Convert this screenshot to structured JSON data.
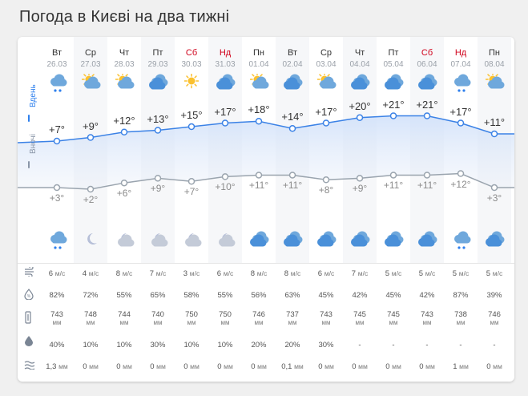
{
  "page": {
    "title": "Погода в Києві на два тижні"
  },
  "labels": {
    "day": "Вдень",
    "night": "Вночі"
  },
  "colors": {
    "day_line": "#3b82e6",
    "night_line": "#9aa4ae",
    "weekend": "#d0021b",
    "accent": "#2f80ed"
  },
  "days": [
    {
      "dow": "Вт",
      "date": "26.03",
      "weekend": false,
      "day_icon": "cloud-rain-icon",
      "night_icon": "cloud-rain-icon",
      "t_day": "+7°",
      "t_night": "+3°",
      "day_temp": 7,
      "night_temp": 3,
      "wind": "6",
      "humidity": "82%",
      "pressure": "743",
      "precip_prob": "40%",
      "precip": "1,3"
    },
    {
      "dow": "Ср",
      "date": "27.03",
      "weekend": false,
      "day_icon": "sun-cloud-icon",
      "night_icon": "moon-icon",
      "t_day": "+9°",
      "t_night": "+2°",
      "day_temp": 9,
      "night_temp": 2,
      "wind": "4",
      "humidity": "72%",
      "pressure": "748",
      "precip_prob": "10%",
      "precip": "0"
    },
    {
      "dow": "Чт",
      "date": "28.03",
      "weekend": false,
      "day_icon": "sun-cloud-icon",
      "night_icon": "moon-cloud-icon",
      "t_day": "+12°",
      "t_night": "+6°",
      "day_temp": 12,
      "night_temp": 6,
      "wind": "8",
      "humidity": "55%",
      "pressure": "744",
      "precip_prob": "10%",
      "precip": "0"
    },
    {
      "dow": "Пт",
      "date": "29.03",
      "weekend": false,
      "day_icon": "cloud-icon",
      "night_icon": "moon-cloud-icon",
      "t_day": "+13°",
      "t_night": "+9°",
      "day_temp": 13,
      "night_temp": 9,
      "wind": "7",
      "humidity": "65%",
      "pressure": "740",
      "precip_prob": "30%",
      "precip": "0"
    },
    {
      "dow": "Сб",
      "date": "30.03",
      "weekend": true,
      "day_icon": "sun-icon",
      "night_icon": "moon-cloud-icon",
      "t_day": "+15°",
      "t_night": "+7°",
      "day_temp": 15,
      "night_temp": 7,
      "wind": "3",
      "humidity": "58%",
      "pressure": "750",
      "precip_prob": "10%",
      "precip": "0"
    },
    {
      "dow": "Нд",
      "date": "31.03",
      "weekend": true,
      "day_icon": "cloud-icon",
      "night_icon": "moon-cloud-icon",
      "t_day": "+17°",
      "t_night": "+10°",
      "day_temp": 17,
      "night_temp": 10,
      "wind": "6",
      "humidity": "55%",
      "pressure": "750",
      "precip_prob": "10%",
      "precip": "0"
    },
    {
      "dow": "Пн",
      "date": "01.04",
      "weekend": false,
      "day_icon": "sun-cloud-icon",
      "night_icon": "cloud-icon",
      "t_day": "+18°",
      "t_night": "+11°",
      "day_temp": 18,
      "night_temp": 11,
      "wind": "8",
      "humidity": "56%",
      "pressure": "746",
      "precip_prob": "20%",
      "precip": "0"
    },
    {
      "dow": "Вт",
      "date": "02.04",
      "weekend": false,
      "day_icon": "cloud-icon",
      "night_icon": "cloud-icon",
      "t_day": "+14°",
      "t_night": "+11°",
      "day_temp": 14,
      "night_temp": 11,
      "wind": "8",
      "humidity": "63%",
      "pressure": "737",
      "precip_prob": "20%",
      "precip": "0,1"
    },
    {
      "dow": "Ср",
      "date": "03.04",
      "weekend": false,
      "day_icon": "sun-cloud-icon",
      "night_icon": "cloud-icon",
      "t_day": "+17°",
      "t_night": "+8°",
      "day_temp": 17,
      "night_temp": 8,
      "wind": "6",
      "humidity": "45%",
      "pressure": "743",
      "precip_prob": "30%",
      "precip": "0"
    },
    {
      "dow": "Чт",
      "date": "04.04",
      "weekend": false,
      "day_icon": "cloud-icon",
      "night_icon": "cloud-icon",
      "t_day": "+20°",
      "t_night": "+9°",
      "day_temp": 20,
      "night_temp": 9,
      "wind": "7",
      "humidity": "42%",
      "pressure": "745",
      "precip_prob": "-",
      "precip": "0"
    },
    {
      "dow": "Пт",
      "date": "05.04",
      "weekend": false,
      "day_icon": "cloud-icon",
      "night_icon": "cloud-icon",
      "t_day": "+21°",
      "t_night": "+11°",
      "day_temp": 21,
      "night_temp": 11,
      "wind": "5",
      "humidity": "45%",
      "pressure": "745",
      "precip_prob": "-",
      "precip": "0"
    },
    {
      "dow": "Сб",
      "date": "06.04",
      "weekend": true,
      "day_icon": "cloud-icon",
      "night_icon": "cloud-icon",
      "t_day": "+21°",
      "t_night": "+11°",
      "day_temp": 21,
      "night_temp": 11,
      "wind": "5",
      "humidity": "42%",
      "pressure": "743",
      "precip_prob": "-",
      "precip": "0"
    },
    {
      "dow": "Нд",
      "date": "07.04",
      "weekend": true,
      "day_icon": "cloud-rain-icon",
      "night_icon": "cloud-rain-icon",
      "t_day": "+17°",
      "t_night": "+12°",
      "day_temp": 17,
      "night_temp": 12,
      "wind": "5",
      "humidity": "87%",
      "pressure": "738",
      "precip_prob": "-",
      "precip": "1"
    },
    {
      "dow": "Пн",
      "date": "08.04",
      "weekend": false,
      "day_icon": "sun-cloud-icon",
      "night_icon": "cloud-icon",
      "t_day": "+11°",
      "t_night": "+3°",
      "day_temp": 11,
      "night_temp": 3,
      "wind": "5",
      "humidity": "39%",
      "pressure": "746",
      "precip_prob": "-",
      "precip": "0"
    }
  ],
  "row_icons": [
    "wind-icon",
    "humidity-icon",
    "pressure-icon",
    "precip-probability-icon",
    "precipitation-icon"
  ],
  "units": {
    "wind": "м/с",
    "pressure": "мм",
    "precip": "мм"
  }
}
